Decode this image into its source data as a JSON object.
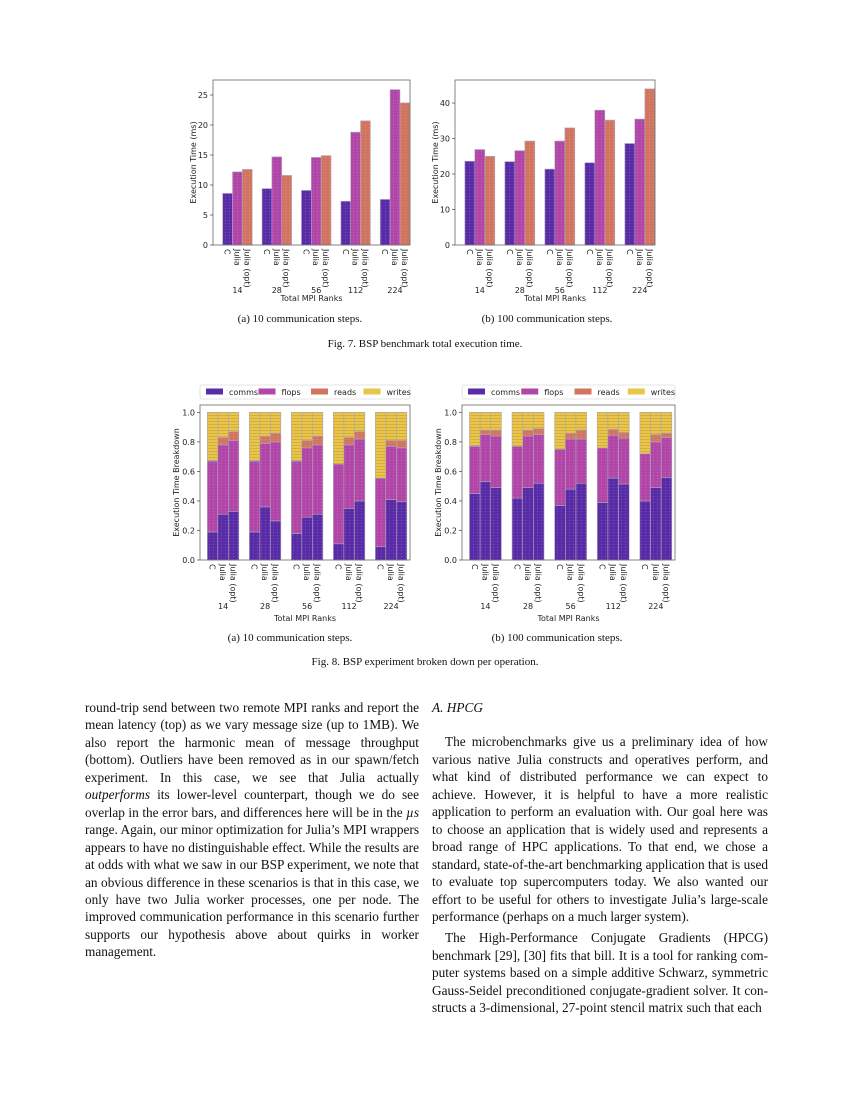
{
  "colors": {
    "comms_or_C": "#5a2ba6",
    "flops_or_julia": "#b245a8",
    "reads_or_julia_opt": "#d27560",
    "writes": "#e9c54b"
  },
  "chart_data": [
    {
      "type": "bar",
      "categories": [
        "14",
        "28",
        "56",
        "112",
        "224"
      ],
      "subcategories": [
        "C",
        "Julia",
        "Julia (opt)"
      ],
      "series": [
        {
          "name": "C",
          "values": [
            8.6,
            9.4,
            9.1,
            7.3,
            7.6
          ]
        },
        {
          "name": "Julia",
          "values": [
            12.2,
            14.7,
            14.6,
            18.8,
            25.9
          ]
        },
        {
          "name": "Julia (opt)",
          "values": [
            12.6,
            11.6,
            14.9,
            20.7,
            23.7
          ]
        }
      ],
      "xlabel": "Total MPI Ranks",
      "ylabel": "Execution Time (ms)",
      "ylim": [
        0,
        27.5
      ],
      "yticks": [
        "0",
        "5",
        "10",
        "15",
        "20",
        "25"
      ],
      "grid": false
    },
    {
      "type": "bar",
      "categories": [
        "14",
        "28",
        "56",
        "112",
        "224"
      ],
      "subcategories": [
        "C",
        "Julia",
        "Julia (opt)"
      ],
      "series": [
        {
          "name": "C",
          "values": [
            23.6,
            23.5,
            21.4,
            23.2,
            28.6
          ]
        },
        {
          "name": "Julia",
          "values": [
            26.9,
            26.6,
            29.3,
            38.0,
            35.5
          ]
        },
        {
          "name": "Julia (opt)",
          "values": [
            25.0,
            29.3,
            33.0,
            35.2,
            44.0
          ]
        }
      ],
      "xlabel": "Total MPI Ranks",
      "ylabel": "Execution Time (ms)",
      "ylim": [
        0,
        46.5
      ],
      "yticks": [
        "0",
        "10",
        "20",
        "30",
        "40"
      ],
      "grid": false
    },
    {
      "type": "bar",
      "stacked": true,
      "categories": [
        "14",
        "28",
        "56",
        "112",
        "224"
      ],
      "subcategories": [
        "C",
        "Julia",
        "Julia (opt)"
      ],
      "legend": [
        "comms",
        "flops",
        "reads",
        "writes"
      ],
      "legend_position": "top",
      "series": [
        {
          "name": "comms",
          "values": [
            [
              0.19,
              0.31,
              0.33
            ],
            [
              0.19,
              0.36,
              0.265
            ],
            [
              0.18,
              0.29,
              0.31
            ],
            [
              0.11,
              0.35,
              0.4
            ],
            [
              0.09,
              0.41,
              0.395
            ]
          ]
        },
        {
          "name": "flops",
          "values": [
            [
              0.48,
              0.47,
              0.48
            ],
            [
              0.48,
              0.43,
              0.535
            ],
            [
              0.49,
              0.47,
              0.47
            ],
            [
              0.54,
              0.43,
              0.42
            ],
            [
              0.465,
              0.36,
              0.365
            ]
          ]
        },
        {
          "name": "reads",
          "values": [
            [
              0.005,
              0.05,
              0.06
            ],
            [
              0.005,
              0.05,
              0.06
            ],
            [
              0.005,
              0.05,
              0.06
            ],
            [
              0.0,
              0.05,
              0.05
            ],
            [
              0.0,
              0.04,
              0.05
            ]
          ]
        },
        {
          "name": "writes",
          "values": [
            [
              0.325,
              0.17,
              0.13
            ],
            [
              0.325,
              0.16,
              0.14
            ],
            [
              0.325,
              0.19,
              0.16
            ],
            [
              0.35,
              0.17,
              0.13
            ],
            [
              0.445,
              0.19,
              0.19
            ]
          ]
        }
      ],
      "xlabel": "Total MPI Ranks",
      "ylabel": "Execution Time Breakdown",
      "ylim": [
        0,
        1.05
      ],
      "yticks": [
        "0.0",
        "0.2",
        "0.4",
        "0.6",
        "0.8",
        "1.0"
      ],
      "grid": false
    },
    {
      "type": "bar",
      "stacked": true,
      "categories": [
        "14",
        "28",
        "56",
        "112",
        "224"
      ],
      "subcategories": [
        "C",
        "Julia",
        "Julia (opt)"
      ],
      "legend": [
        "comms",
        "flops",
        "reads",
        "writes"
      ],
      "legend_position": "top",
      "series": [
        {
          "name": "comms",
          "values": [
            [
              0.45,
              0.53,
              0.49
            ],
            [
              0.42,
              0.49,
              0.52
            ],
            [
              0.37,
              0.48,
              0.52
            ],
            [
              0.39,
              0.555,
              0.515
            ],
            [
              0.4,
              0.49,
              0.56
            ]
          ]
        },
        {
          "name": "flops",
          "values": [
            [
              0.32,
              0.32,
              0.35
            ],
            [
              0.35,
              0.35,
              0.33
            ],
            [
              0.38,
              0.34,
              0.3
            ],
            [
              0.37,
              0.29,
              0.31
            ],
            [
              0.32,
              0.31,
              0.27
            ]
          ]
        },
        {
          "name": "reads",
          "values": [
            [
              0.005,
              0.03,
              0.04
            ],
            [
              0.0,
              0.04,
              0.04
            ],
            [
              0.0,
              0.04,
              0.06
            ],
            [
              0.0,
              0.04,
              0.04
            ],
            [
              0.0,
              0.05,
              0.03
            ]
          ]
        },
        {
          "name": "writes",
          "values": [
            [
              0.225,
              0.12,
              0.12
            ],
            [
              0.23,
              0.12,
              0.11
            ],
            [
              0.25,
              0.14,
              0.12
            ],
            [
              0.24,
              0.115,
              0.135
            ],
            [
              0.28,
              0.15,
              0.14
            ]
          ]
        }
      ],
      "xlabel": "Total MPI Ranks",
      "ylabel": "Execution Time Breakdown",
      "ylim": [
        0,
        1.05
      ],
      "yticks": [
        "0.0",
        "0.2",
        "0.4",
        "0.6",
        "0.8",
        "1.0"
      ],
      "grid": false
    }
  ],
  "figures": {
    "fig7": {
      "sub_a": "(a) 10 communication steps.",
      "sub_b": "(b) 100 communication steps.",
      "caption": "Fig. 7.  BSP benchmark total execution time."
    },
    "fig8": {
      "sub_a": "(a) 10 communication steps.",
      "sub_b": "(b) 100 communication steps.",
      "caption": "Fig. 8.  BSP experiment broken down per operation."
    }
  },
  "left_column": {
    "p1_a": "round-trip send between two remote MPI ranks and report the mean latency (top) as we vary message size (up to 1MB). We also report the harmonic mean of message throughput (bottom). Outliers have been removed as in our spawn/fetch experiment. In this case, we see that Julia actually ",
    "p1_em1": "outperforms",
    "p1_b": " its lower-level counterpart, though we do see overlap in the error bars, and differences here will be in the ",
    "p1_em2": "µs",
    "p1_c": " range. Again, our minor optimization for Julia’s MPI wrappers appears to have no distinguishable effect. While the results are at odds with what we saw in our BSP experiment, we note that an obvious difference in these scenarios is that in this case, we only have two Julia worker processes, one per node. The improved communication performance in this scenario further supports our hypothesis above about quirks in worker management."
  },
  "right_column": {
    "section_heading": "A. HPCG",
    "p1": "The microbenchmarks give us a preliminary idea of how various native Julia constructs and operatives perform, and what kind of distributed performance we can expect to achieve. However, it is helpful to have a more realistic application to perform an evaluation with. Our goal here was to choose an application that is widely used and represents a broad range of HPC applications. To that end, we chose a standard, state-of-the-art benchmarking application that is used to evaluate top supercomputers today. We also wanted our effort to be useful for others to investigate Julia’s large-scale performance (perhaps on a much larger system).",
    "p2": "The High-Performance Conjugate Gradients (HPCG) bench­mark [29], [30] fits that bill. It is a tool for ranking com­puter systems based on a simple additive Schwarz, symmetric Gauss-Seidel preconditioned conjugate-gradient solver. It con­structs a 3-dimensional, 27-point stencil matrix such that each"
  }
}
